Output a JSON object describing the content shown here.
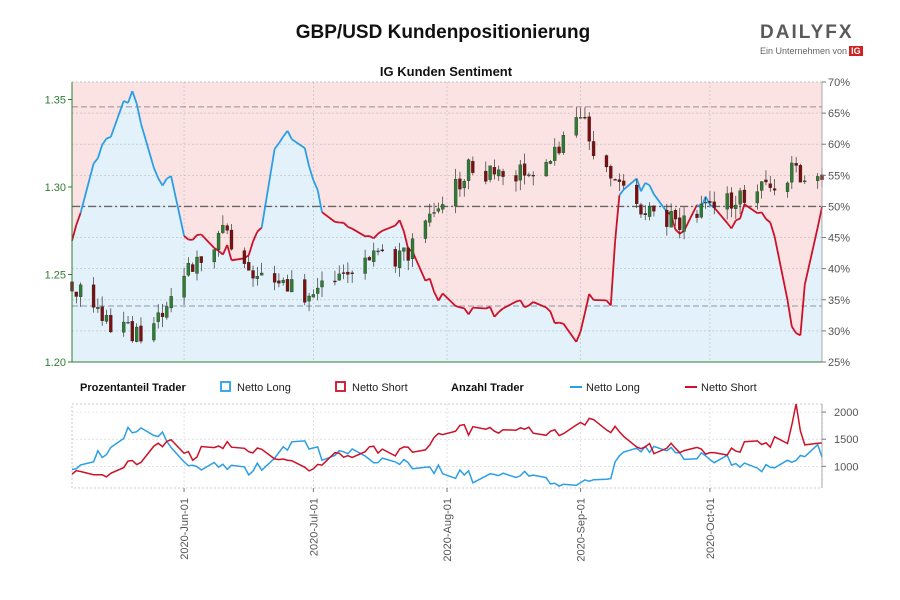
{
  "header": {
    "title": "GBP/USD Kundenpositionierung",
    "subtitle": "IG Kunden Sentiment",
    "brand_name": "DAILYFX",
    "brand_tagline": "Ein Unternehmen von",
    "brand_partner": "IG"
  },
  "legend": {
    "group1_title": "Prozentanteil Trader",
    "group1_long": "Netto Long",
    "group1_short": "Netto Short",
    "group2_title": "Anzahl Trader",
    "group2_long": "Netto Long",
    "group2_short": "Netto Short"
  },
  "colors": {
    "long": "#2b9fe6",
    "short": "#cc1128",
    "long_fill": "#e3f1fb",
    "short_fill": "#fbe3e4",
    "candle_up": "#2e7d32",
    "candle_down": "#7a1010",
    "price_axis": "#2e7d32"
  },
  "chart_data": [
    {
      "type": "candlestick",
      "name": "price",
      "period": [
        "2020-05-06",
        "2020-10-27"
      ],
      "x_ticks": [
        "2020-Jun-01",
        "2020-Jul-01",
        "2020-Aug-01",
        "2020-Sep-01",
        "2020-Oct-01"
      ],
      "y_left_ticks": [
        "1.20",
        "1.25",
        "1.30",
        "1.35"
      ],
      "y_left_range": [
        1.2,
        1.36
      ],
      "y_right_ticks": [
        "25%",
        "30%",
        "35%",
        "40%",
        "45%",
        "50%",
        "55%",
        "60%",
        "65%",
        "70%"
      ],
      "y_right_range": [
        25,
        70
      ],
      "reference_lines_pct": [
        34,
        50,
        66
      ],
      "close_anchors": [
        {
          "date": "2020-05-06",
          "close": 1.245
        },
        {
          "date": "2020-05-13",
          "close": 1.225
        },
        {
          "date": "2020-05-21",
          "close": 1.215
        },
        {
          "date": "2020-05-27",
          "close": 1.225
        },
        {
          "date": "2020-06-03",
          "close": 1.255
        },
        {
          "date": "2020-06-10",
          "close": 1.275
        },
        {
          "date": "2020-06-16",
          "close": 1.255
        },
        {
          "date": "2020-06-23",
          "close": 1.245
        },
        {
          "date": "2020-06-30",
          "close": 1.238
        },
        {
          "date": "2020-07-08",
          "close": 1.255
        },
        {
          "date": "2020-07-15",
          "close": 1.26
        },
        {
          "date": "2020-07-22",
          "close": 1.26
        },
        {
          "date": "2020-07-30",
          "close": 1.29
        },
        {
          "date": "2020-08-06",
          "close": 1.31
        },
        {
          "date": "2020-08-13",
          "close": 1.305
        },
        {
          "date": "2020-08-20",
          "close": 1.31
        },
        {
          "date": "2020-08-27",
          "close": 1.325
        },
        {
          "date": "2020-09-01",
          "close": 1.34
        },
        {
          "date": "2020-09-08",
          "close": 1.3
        },
        {
          "date": "2020-09-15",
          "close": 1.29
        },
        {
          "date": "2020-09-23",
          "close": 1.28
        },
        {
          "date": "2020-10-01",
          "close": 1.29
        },
        {
          "date": "2020-10-08",
          "close": 1.295
        },
        {
          "date": "2020-10-15",
          "close": 1.298
        },
        {
          "date": "2020-10-21",
          "close": 1.31
        },
        {
          "date": "2020-10-27",
          "close": 1.3
        }
      ],
      "long_pct_anchors": [
        {
          "date": "2020-05-06",
          "value": 45
        },
        {
          "date": "2020-05-11",
          "value": 56
        },
        {
          "date": "2020-05-15",
          "value": 62
        },
        {
          "date": "2020-05-20",
          "value": 69
        },
        {
          "date": "2020-05-23",
          "value": 60
        },
        {
          "date": "2020-05-27",
          "value": 54
        },
        {
          "date": "2020-05-29",
          "value": 55
        },
        {
          "date": "2020-06-01",
          "value": 46
        },
        {
          "date": "2020-06-08",
          "value": 44
        },
        {
          "date": "2020-06-15",
          "value": 41
        },
        {
          "date": "2020-06-20",
          "value": 48
        },
        {
          "date": "2020-06-22",
          "value": 60
        },
        {
          "date": "2020-06-27",
          "value": 62
        },
        {
          "date": "2020-06-29",
          "value": 59
        },
        {
          "date": "2020-07-03",
          "value": 50
        },
        {
          "date": "2020-07-07",
          "value": 48
        },
        {
          "date": "2020-07-14",
          "value": 45
        },
        {
          "date": "2020-07-21",
          "value": 47
        },
        {
          "date": "2020-07-27",
          "value": 38
        },
        {
          "date": "2020-08-03",
          "value": 33
        },
        {
          "date": "2020-08-10",
          "value": 33
        },
        {
          "date": "2020-08-17",
          "value": 34
        },
        {
          "date": "2020-08-24",
          "value": 34
        },
        {
          "date": "2020-08-31",
          "value": 28
        },
        {
          "date": "2020-09-03",
          "value": 35
        },
        {
          "date": "2020-09-08",
          "value": 35
        },
        {
          "date": "2020-09-10",
          "value": 52
        },
        {
          "date": "2020-09-14",
          "value": 54
        },
        {
          "date": "2020-09-21",
          "value": 50
        },
        {
          "date": "2020-09-24",
          "value": 46
        },
        {
          "date": "2020-09-30",
          "value": 51
        },
        {
          "date": "2020-10-06",
          "value": 47
        },
        {
          "date": "2020-10-11",
          "value": 51
        },
        {
          "date": "2020-10-16",
          "value": 46
        },
        {
          "date": "2020-10-20",
          "value": 31
        },
        {
          "date": "2020-10-22",
          "value": 29
        },
        {
          "date": "2020-10-24",
          "value": 45
        },
        {
          "date": "2020-10-27",
          "value": 49
        }
      ]
    },
    {
      "type": "line",
      "name": "trader_count",
      "y_ticks": [
        "1000",
        "1500",
        "2000"
      ],
      "y_range": [
        600,
        2150
      ],
      "series": [
        {
          "name": "Netto Long",
          "anchors": [
            {
              "date": "2020-05-06",
              "value": 1000
            },
            {
              "date": "2020-05-14",
              "value": 1300
            },
            {
              "date": "2020-05-20",
              "value": 1700
            },
            {
              "date": "2020-05-27",
              "value": 1600
            },
            {
              "date": "2020-06-03",
              "value": 1000
            },
            {
              "date": "2020-06-10",
              "value": 950
            },
            {
              "date": "2020-06-17",
              "value": 900
            },
            {
              "date": "2020-06-23",
              "value": 1300
            },
            {
              "date": "2020-06-29",
              "value": 1500
            },
            {
              "date": "2020-07-03",
              "value": 1200
            },
            {
              "date": "2020-07-10",
              "value": 1300
            },
            {
              "date": "2020-07-17",
              "value": 1100
            },
            {
              "date": "2020-07-24",
              "value": 1000
            },
            {
              "date": "2020-07-31",
              "value": 900
            },
            {
              "date": "2020-08-07",
              "value": 800
            },
            {
              "date": "2020-08-15",
              "value": 850
            },
            {
              "date": "2020-08-22",
              "value": 800
            },
            {
              "date": "2020-08-31",
              "value": 700
            },
            {
              "date": "2020-09-07",
              "value": 750
            },
            {
              "date": "2020-09-11",
              "value": 1200
            },
            {
              "date": "2020-09-17",
              "value": 1350
            },
            {
              "date": "2020-09-23",
              "value": 1250
            },
            {
              "date": "2020-09-30",
              "value": 1200
            },
            {
              "date": "2020-10-07",
              "value": 1100
            },
            {
              "date": "2020-10-13",
              "value": 1000
            },
            {
              "date": "2020-10-17",
              "value": 1100
            },
            {
              "date": "2020-10-21",
              "value": 1050
            },
            {
              "date": "2020-10-24",
              "value": 1250
            },
            {
              "date": "2020-10-26",
              "value": 1350
            },
            {
              "date": "2020-10-27",
              "value": 1200
            }
          ]
        },
        {
          "name": "Netto Short",
          "anchors": [
            {
              "date": "2020-05-06",
              "value": 900
            },
            {
              "date": "2020-05-14",
              "value": 900
            },
            {
              "date": "2020-05-21",
              "value": 1100
            },
            {
              "date": "2020-05-28",
              "value": 1450
            },
            {
              "date": "2020-06-03",
              "value": 1200
            },
            {
              "date": "2020-06-10",
              "value": 1400
            },
            {
              "date": "2020-06-18",
              "value": 1350
            },
            {
              "date": "2020-06-24",
              "value": 1050
            },
            {
              "date": "2020-06-30",
              "value": 900
            },
            {
              "date": "2020-07-04",
              "value": 1200
            },
            {
              "date": "2020-07-12",
              "value": 1250
            },
            {
              "date": "2020-07-20",
              "value": 1300
            },
            {
              "date": "2020-07-27",
              "value": 1350
            },
            {
              "date": "2020-08-01",
              "value": 1600
            },
            {
              "date": "2020-08-07",
              "value": 1700
            },
            {
              "date": "2020-08-14",
              "value": 1700
            },
            {
              "date": "2020-08-21",
              "value": 1650
            },
            {
              "date": "2020-08-28",
              "value": 1600
            },
            {
              "date": "2020-09-01",
              "value": 1850
            },
            {
              "date": "2020-09-08",
              "value": 1700
            },
            {
              "date": "2020-09-12",
              "value": 1450
            },
            {
              "date": "2020-09-17",
              "value": 1350
            },
            {
              "date": "2020-09-24",
              "value": 1300
            },
            {
              "date": "2020-10-01",
              "value": 1250
            },
            {
              "date": "2020-10-08",
              "value": 1350
            },
            {
              "date": "2020-10-14",
              "value": 1400
            },
            {
              "date": "2020-10-19",
              "value": 1500
            },
            {
              "date": "2020-10-21",
              "value": 2100
            },
            {
              "date": "2020-10-23",
              "value": 1400
            },
            {
              "date": "2020-10-27",
              "value": 1350
            }
          ]
        }
      ]
    }
  ]
}
